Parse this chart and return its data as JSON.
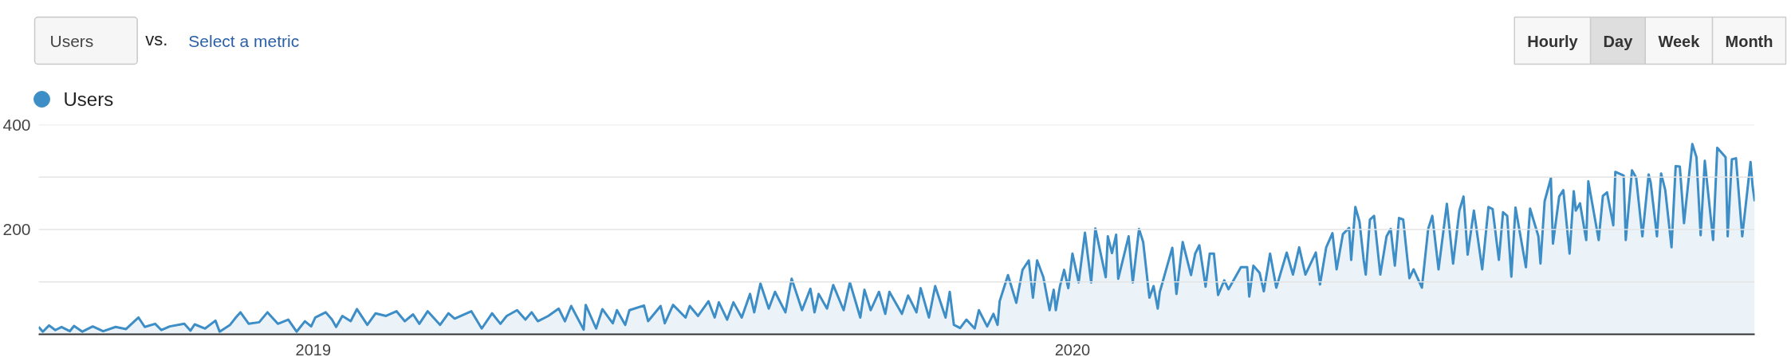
{
  "chart_data": {
    "type": "area",
    "annotations": [
      "Users",
      "vs.",
      "Select a metric",
      "Hourly",
      "Day",
      "Week",
      "Month"
    ],
    "x": [
      "2018-08-22",
      "2018-08-24",
      "2018-08-27",
      "2018-08-30",
      "2018-09-02",
      "2018-09-06",
      "2018-09-08",
      "2018-09-12",
      "2018-09-17",
      "2018-09-22",
      "2018-09-28",
      "2018-10-03",
      "2018-10-09",
      "2018-10-12",
      "2018-10-17",
      "2018-10-20",
      "2018-10-24",
      "2018-10-31",
      "2018-11-03",
      "2018-11-05",
      "2018-11-10",
      "2018-11-15",
      "2018-11-17",
      "2018-11-22",
      "2018-11-25",
      "2018-11-27",
      "2018-12-01",
      "2018-12-06",
      "2018-12-10",
      "2018-12-15",
      "2018-12-20",
      "2018-12-24",
      "2018-12-28",
      "2018-12-31",
      "2019-01-02",
      "2019-01-07",
      "2019-01-10",
      "2019-01-12",
      "2019-01-15",
      "2019-01-19",
      "2019-01-22",
      "2019-01-27",
      "2019-01-31",
      "2019-02-05",
      "2019-02-10",
      "2019-02-14",
      "2019-02-18",
      "2019-02-21",
      "2019-02-25",
      "2019-03-03",
      "2019-03-07",
      "2019-03-10",
      "2019-03-18",
      "2019-03-23",
      "2019-03-28",
      "2019-04-01",
      "2019-04-04",
      "2019-04-09",
      "2019-04-13",
      "2019-04-16",
      "2019-04-19",
      "2019-04-24",
      "2019-04-29",
      "2019-05-02",
      "2019-05-05",
      "2019-05-11",
      "2019-05-12",
      "2019-05-17",
      "2019-05-20",
      "2019-05-25",
      "2019-05-27",
      "2019-05-31",
      "2019-06-02",
      "2019-06-09",
      "2019-06-11",
      "2019-06-17",
      "2019-06-19",
      "2019-06-23",
      "2019-06-29",
      "2019-07-01",
      "2019-07-05",
      "2019-07-10",
      "2019-07-13",
      "2019-07-15",
      "2019-07-19",
      "2019-07-22",
      "2019-07-26",
      "2019-07-30",
      "2019-08-01",
      "2019-08-04",
      "2019-08-08",
      "2019-08-11",
      "2019-08-16",
      "2019-08-19",
      "2019-08-24",
      "2019-08-28",
      "2019-08-30",
      "2019-09-01",
      "2019-09-05",
      "2019-09-08",
      "2019-09-13",
      "2019-09-16",
      "2019-09-21",
      "2019-09-23",
      "2019-09-26",
      "2019-09-30",
      "2019-10-03",
      "2019-10-05",
      "2019-10-11",
      "2019-10-14",
      "2019-10-18",
      "2019-10-20",
      "2019-10-24",
      "2019-10-27",
      "2019-11-01",
      "2019-11-03",
      "2019-11-05",
      "2019-11-08",
      "2019-11-11",
      "2019-11-15",
      "2019-11-17",
      "2019-11-21",
      "2019-11-24",
      "2019-11-26",
      "2019-11-27",
      "2019-12-01",
      "2019-12-05",
      "2019-12-08",
      "2019-12-11",
      "2019-12-13",
      "2019-12-15",
      "2019-12-18",
      "2019-12-21",
      "2019-12-23",
      "2019-12-24",
      "2019-12-26",
      "2019-12-28",
      "2019-12-30",
      "2020-01-01",
      "2020-01-04",
      "2020-01-07",
      "2020-01-10",
      "2020-01-12",
      "2020-01-17",
      "2020-01-18",
      "2020-01-20",
      "2020-01-22",
      "2020-01-23",
      "2020-01-28",
      "2020-01-30",
      "2020-02-02",
      "2020-02-04",
      "2020-02-07",
      "2020-02-09",
      "2020-02-11",
      "2020-02-12",
      "2020-02-16",
      "2020-02-18",
      "2020-02-20",
      "2020-02-23",
      "2020-02-27",
      "2020-02-29",
      "2020-03-02",
      "2020-03-05",
      "2020-03-07",
      "2020-03-09",
      "2020-03-11",
      "2020-03-14",
      "2020-03-16",
      "2020-03-22",
      "2020-03-25",
      "2020-03-26",
      "2020-03-28",
      "2020-03-31",
      "2020-04-02",
      "2020-04-05",
      "2020-04-08",
      "2020-04-13",
      "2020-04-16",
      "2020-04-19",
      "2020-04-22",
      "2020-04-27",
      "2020-04-29",
      "2020-05-02",
      "2020-05-05",
      "2020-05-07",
      "2020-05-10",
      "2020-05-13",
      "2020-05-14",
      "2020-05-16",
      "2020-05-18",
      "2020-05-20",
      "2020-05-21",
      "2020-05-23",
      "2020-05-25",
      "2020-05-28",
      "2020-05-31",
      "2020-06-02",
      "2020-06-04",
      "2020-06-06",
      "2020-06-08",
      "2020-06-11",
      "2020-06-13",
      "2020-06-17",
      "2020-06-20",
      "2020-06-22",
      "2020-06-25",
      "2020-06-29",
      "2020-07-02",
      "2020-07-05",
      "2020-07-07",
      "2020-07-09",
      "2020-07-12",
      "2020-07-16",
      "2020-07-19",
      "2020-07-21",
      "2020-07-24",
      "2020-07-26",
      "2020-07-28",
      "2020-07-30",
      "2020-08-01",
      "2020-08-06",
      "2020-08-08",
      "2020-08-12",
      "2020-08-13",
      "2020-08-15",
      "2020-08-18",
      "2020-08-19",
      "2020-08-22",
      "2020-08-24",
      "2020-08-27",
      "2020-08-29",
      "2020-08-30",
      "2020-09-01",
      "2020-09-04",
      "2020-09-05",
      "2020-09-10",
      "2020-09-12",
      "2020-09-14",
      "2020-09-17",
      "2020-09-18",
      "2020-09-22",
      "2020-09-23",
      "2020-09-26",
      "2020-09-28",
      "2020-10-01",
      "2020-10-04",
      "2020-10-05",
      "2020-10-08",
      "2020-10-10",
      "2020-10-12",
      "2020-10-15",
      "2020-10-17",
      "2020-10-19",
      "2020-10-21",
      "2020-10-25",
      "2020-10-27",
      "2020-10-29",
      "2020-10-31",
      "2020-11-04",
      "2020-11-06",
      "2020-11-10",
      "2020-11-11",
      "2020-11-13",
      "2020-11-15",
      "2020-11-18",
      "2020-11-22",
      "2020-11-23",
      "2020-11-24"
    ],
    "series": [
      {
        "name": "Users",
        "color": "#3d8dc6",
        "values": [
          14,
          5,
          17,
          8,
          14,
          6,
          16,
          5,
          15,
          6,
          14,
          10,
          32,
          14,
          20,
          8,
          15,
          20,
          7,
          19,
          11,
          26,
          5,
          18,
          33,
          42,
          20,
          23,
          42,
          20,
          28,
          5,
          25,
          15,
          32,
          42,
          28,
          14,
          35,
          25,
          48,
          18,
          40,
          35,
          44,
          25,
          38,
          20,
          44,
          18,
          40,
          30,
          44,
          11,
          40,
          20,
          35,
          46,
          28,
          42,
          25,
          35,
          49,
          25,
          54,
          9,
          56,
          11,
          48,
          21,
          46,
          18,
          46,
          55,
          25,
          54,
          21,
          56,
          32,
          54,
          35,
          63,
          32,
          61,
          28,
          61,
          32,
          77,
          42,
          97,
          49,
          81,
          42,
          106,
          46,
          87,
          42,
          77,
          49,
          94,
          46,
          99,
          32,
          85,
          46,
          81,
          39,
          81,
          39,
          74,
          42,
          88,
          32,
          92,
          32,
          81,
          18,
          12,
          28,
          11,
          46,
          15,
          39,
          18,
          63,
          113,
          60,
          123,
          141,
          70,
          141,
          109,
          46,
          85,
          46,
          92,
          123,
          88,
          154,
          99,
          194,
          99,
          202,
          109,
          187,
          155,
          190,
          106,
          187,
          99,
          201,
          176,
          70,
          92,
          49,
          81,
          137,
          165,
          77,
          176,
          113,
          154,
          170,
          91,
          154,
          154,
          75,
          103,
          86,
          128,
          128,
          72,
          131,
          117,
          82,
          154,
          89,
          156,
          114,
          166,
          114,
          156,
          95,
          166,
          193,
          124,
          191,
          203,
          142,
          243,
          215,
          142,
          114,
          219,
          226,
          114,
          187,
          201,
          131,
          222,
          219,
          107,
          124,
          89,
          201,
          226,
          124,
          249,
          135,
          236,
          263,
          152,
          236,
          124,
          243,
          239,
          142,
          233,
          226,
          110,
          242,
          128,
          240,
          187,
          135,
          254,
          298,
          173,
          263,
          275,
          154,
          273,
          236,
          250,
          180,
          292,
          180,
          264,
          271,
          208,
          310,
          303,
          180,
          313,
          299,
          187,
          305,
          289,
          187,
          307,
          275,
          166,
          321,
          320,
          212,
          363,
          338,
          189,
          331,
          180,
          356,
          338,
          187,
          334,
          336,
          187,
          329,
          282,
          254
        ]
      }
    ],
    "xlim": [
      "2018-08-22",
      "2020-11-24"
    ],
    "xticks": [
      {
        "value": "2019-01-01",
        "label": "2019"
      },
      {
        "value": "2020-01-01",
        "label": "2020"
      }
    ],
    "ylim": [
      0,
      400
    ],
    "yticks": [
      {
        "value": 100,
        "label": null
      },
      200,
      {
        "value": 300,
        "label": null
      },
      400
    ],
    "grid": "y",
    "legend": "top left"
  }
}
